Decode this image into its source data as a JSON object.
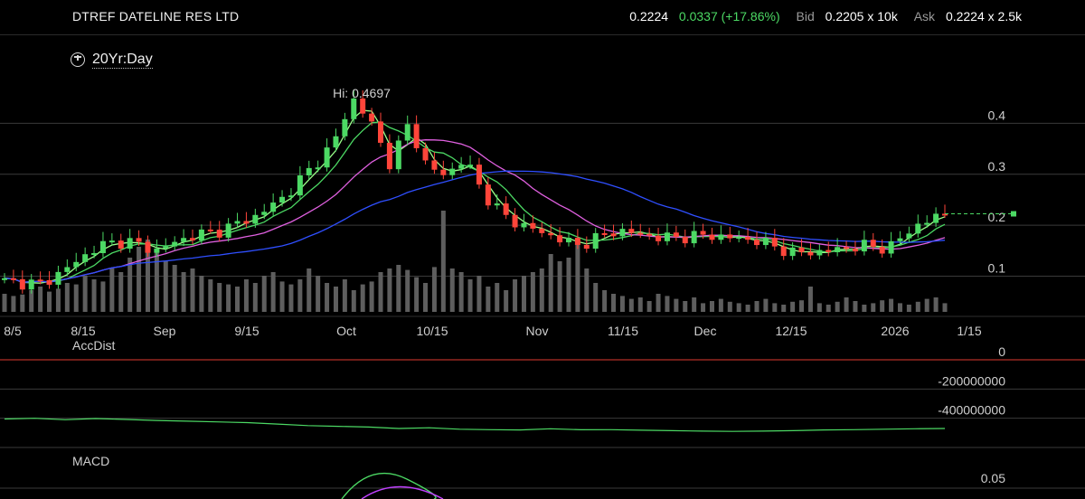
{
  "header": {
    "title": "DTREF DATELINE RES LTD",
    "last": "0.2224",
    "change": "0.0337 (+17.86%)",
    "bid_label": "Bid",
    "bid": "0.2205 x 10k",
    "ask_label": "Ask",
    "ask": "0.2224 x 2.5k"
  },
  "range_selector": {
    "label": "20Yr:Day",
    "icon": "clock-icon"
  },
  "colors": {
    "up": "#4cd964",
    "down": "#ff453a",
    "ma_fast": "#9aff8a",
    "ma_mid": "#4cd964",
    "ma_slow": "#e060e0",
    "ma_long": "#2f4fff",
    "volume": "#5e5e5e",
    "accdist": "#4cd964",
    "accdist_zero": "#e03a30",
    "macd": "#4cd964",
    "signal": "#c040ff",
    "grid": "#3a3a3a"
  },
  "panels": {
    "accdist_label": "AccDist",
    "macd_label": "MACD"
  },
  "chart_data": [
    {
      "type": "candlestick",
      "ylim": [
        0.03,
        0.5
      ],
      "y_ticks": [
        "0.4",
        "0.3",
        "0.2",
        "0.1"
      ],
      "y_tick_values": [
        0.4,
        0.3,
        0.2,
        0.1
      ],
      "x_ticks": [
        "8/5",
        "8/15",
        "Sep",
        "9/15",
        "Oct",
        "10/15",
        "Nov",
        "11/15",
        "Dec",
        "12/15",
        "2026",
        "1/15"
      ],
      "annotation": "Hi: 0.4697",
      "hi": 0.4697,
      "last_price_tag": "0.2224",
      "anchors_close": [
        [
          0,
          0.09
        ],
        [
          0.04,
          0.085
        ],
        [
          0.07,
          0.12
        ],
        [
          0.1,
          0.16
        ],
        [
          0.13,
          0.17
        ],
        [
          0.16,
          0.15
        ],
        [
          0.2,
          0.18
        ],
        [
          0.23,
          0.19
        ],
        [
          0.27,
          0.22
        ],
        [
          0.3,
          0.26
        ],
        [
          0.32,
          0.3
        ],
        [
          0.35,
          0.36
        ],
        [
          0.37,
          0.45
        ],
        [
          0.39,
          0.4
        ],
        [
          0.41,
          0.32
        ],
        [
          0.43,
          0.4
        ],
        [
          0.45,
          0.31
        ],
        [
          0.47,
          0.3
        ],
        [
          0.49,
          0.33
        ],
        [
          0.51,
          0.26
        ],
        [
          0.53,
          0.22
        ],
        [
          0.55,
          0.2
        ],
        [
          0.58,
          0.18
        ],
        [
          0.61,
          0.16
        ],
        [
          0.65,
          0.19
        ],
        [
          0.7,
          0.175
        ],
        [
          0.75,
          0.18
        ],
        [
          0.8,
          0.17
        ],
        [
          0.84,
          0.145
        ],
        [
          0.88,
          0.15
        ],
        [
          0.91,
          0.16
        ],
        [
          0.94,
          0.155
        ],
        [
          0.97,
          0.2
        ],
        [
          1.0,
          0.2224
        ]
      ],
      "volume_relative": [
        0.25,
        0.22,
        0.24,
        0.3,
        0.35,
        0.28,
        0.32,
        0.4,
        0.38,
        0.5,
        0.45,
        0.42,
        0.6,
        0.55,
        0.75,
        0.9,
        1.0,
        0.85,
        0.7,
        0.65,
        0.55,
        0.6,
        0.5,
        0.45,
        0.4,
        0.38,
        0.35,
        0.45,
        0.4,
        0.5,
        0.55,
        0.42,
        0.38,
        0.45,
        0.6,
        0.5,
        0.4,
        0.35,
        0.45,
        0.3,
        0.38,
        0.42,
        0.55,
        0.6,
        0.65,
        0.58,
        0.48,
        0.4,
        0.62,
        1.4,
        0.6,
        0.55,
        0.45,
        0.5,
        0.35,
        0.4,
        0.3,
        0.45,
        0.5,
        0.55,
        0.6,
        0.8,
        0.7,
        0.75,
        0.95,
        0.6,
        0.4,
        0.3,
        0.25,
        0.22,
        0.18,
        0.2,
        0.15,
        0.25,
        0.22,
        0.18,
        0.15,
        0.2,
        0.12,
        0.15,
        0.18,
        0.14,
        0.12,
        0.1,
        0.15,
        0.18,
        0.12,
        0.1,
        0.14,
        0.16,
        0.35,
        0.12,
        0.1,
        0.14,
        0.2,
        0.15,
        0.1,
        0.12,
        0.16,
        0.18,
        0.12,
        0.1,
        0.14,
        0.18,
        0.2,
        0.12
      ]
    },
    {
      "type": "line",
      "name": "AccDist",
      "y_ticks": [
        "0",
        "-200000000",
        "-400000000"
      ],
      "ylim": [
        -600000000,
        0
      ],
      "values": [
        -405000000,
        -400000000,
        -410000000,
        -402000000,
        -408000000,
        -415000000,
        -420000000,
        -425000000,
        -430000000,
        -440000000,
        -450000000,
        -455000000,
        -460000000,
        -470000000,
        -465000000,
        -475000000,
        -478000000,
        -480000000,
        -472000000,
        -479000000,
        -478000000,
        -482000000,
        -485000000,
        -488000000,
        -490000000,
        -488000000,
        -485000000,
        -480000000,
        -478000000,
        -475000000,
        -472000000,
        -470000000
      ]
    },
    {
      "type": "line",
      "name": "MACD",
      "y_ticks": [
        "0.05"
      ]
    }
  ]
}
